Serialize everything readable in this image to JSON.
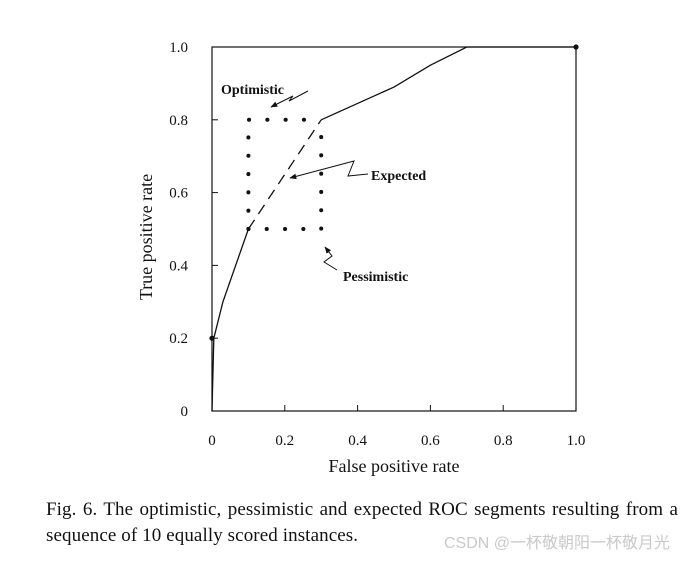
{
  "chart_data": {
    "type": "line",
    "title": "",
    "xlabel": "False positive rate",
    "ylabel": "True positive rate",
    "xlim": [
      0,
      1.0
    ],
    "ylim": [
      0,
      1.0
    ],
    "x_ticks": [
      "0",
      "0.2",
      "0.4",
      "0.6",
      "0.8",
      "1.0"
    ],
    "y_ticks": [
      "0",
      "0.2",
      "0.4",
      "0.6",
      "0.8",
      "1.0"
    ],
    "grid": false,
    "series": [
      {
        "style": "solid",
        "points": [
          [
            0,
            0
          ],
          [
            0.005,
            0.2
          ],
          [
            0.03,
            0.3
          ],
          [
            0.1,
            0.5
          ]
        ]
      },
      {
        "style": "dashed",
        "points": [
          [
            0.1,
            0.5
          ],
          [
            0.3,
            0.8
          ]
        ]
      },
      {
        "style": "solid",
        "points": [
          [
            0.3,
            0.8
          ],
          [
            0.5,
            0.89
          ],
          [
            0.6,
            0.95
          ],
          [
            0.7,
            1.0
          ],
          [
            1.0,
            1.0
          ]
        ]
      },
      {
        "style": "dotted-optimistic",
        "points": [
          [
            0.1,
            0.5
          ],
          [
            0.1,
            0.8
          ],
          [
            0.3,
            0.8
          ]
        ]
      },
      {
        "style": "dotted-pessimistic",
        "points": [
          [
            0.1,
            0.5
          ],
          [
            0.3,
            0.5
          ],
          [
            0.3,
            0.8
          ]
        ]
      }
    ],
    "markers": [
      [
        0,
        0.2
      ],
      [
        1.0,
        1.0
      ]
    ],
    "annotations": [
      {
        "text": "Optimistic",
        "target": [
          0.17,
          0.83
        ]
      },
      {
        "text": "Expected",
        "target": [
          0.22,
          0.65
        ]
      },
      {
        "text": "Pessimistic",
        "target": [
          0.31,
          0.47
        ]
      }
    ]
  },
  "caption": "Fig. 6. The optimistic, pessimistic and expected ROC segments resulting from a sequence of 10 equally scored instances.",
  "watermark": "CSDN @一杯敬朝阳一杯敬月光"
}
